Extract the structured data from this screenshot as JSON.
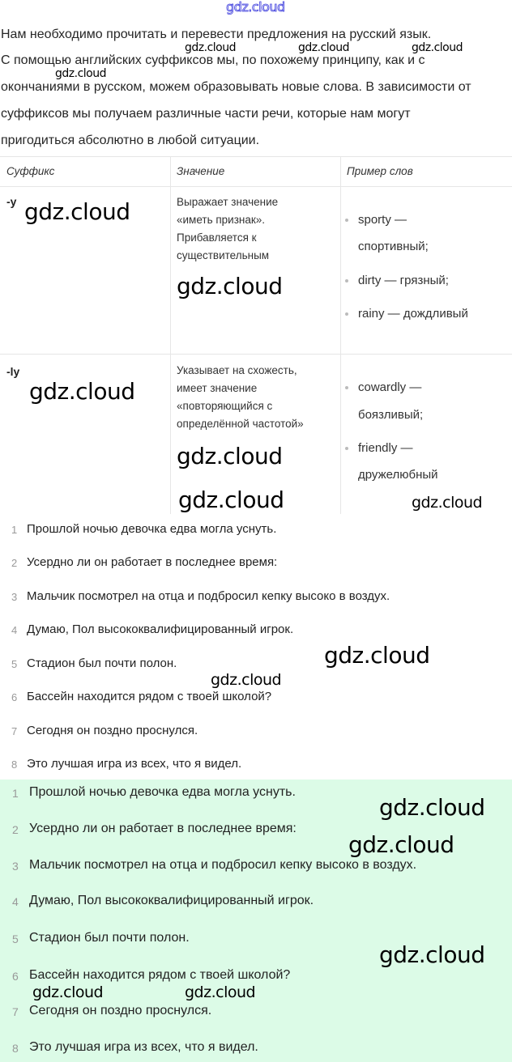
{
  "intro": [
    "Нам необходимо прочитать и перевести предложения на русский язык.",
    "С помощью английских суффиксов мы, по похожему принципу, как и с",
    "окончаниями в русском, можем образовывать новые слова. В зависимости от",
    "суффиксов мы получаем различные части речи, которые нам могут",
    "пригодиться абсолютно в любой ситуации."
  ],
  "table": {
    "headers": [
      "Суффикс",
      "Значение",
      "Пример слов"
    ],
    "rows": [
      {
        "suffix": "-y",
        "meaning": [
          "Выражает значение",
          "«иметь признак».",
          "Прибавляется к",
          "существительным"
        ],
        "examples": [
          [
            "sporty —",
            "спортивный;"
          ],
          [
            "dirty — грязный;"
          ],
          [
            "rainy — дождливый"
          ]
        ]
      },
      {
        "suffix": "-ly",
        "meaning": [
          "Указывает на схожесть,",
          "имеет значение",
          "«повторяющийся с",
          "определённой частотой»"
        ],
        "examples": [
          [
            "cowardly —",
            "боязливый;"
          ],
          [
            "friendly —",
            "дружелюбный"
          ]
        ]
      }
    ]
  },
  "list": [
    {
      "n": "1",
      "text": "Прошлой ночью девочка едва могла уснуть."
    },
    {
      "n": "2",
      "text": "Усердно ли он работает в последнее время:"
    },
    {
      "n": "3",
      "text": "Мальчик посмотрел на отца и подбросил кепку высоко в воздух."
    },
    {
      "n": "4",
      "text": "Думаю, Пол высококвалифицированный игрок."
    },
    {
      "n": "5",
      "text": "Стадион был почти полон."
    },
    {
      "n": "6",
      "text": "Бассейн находится рядом с твоей школой?"
    },
    {
      "n": "7",
      "text": "Сегодня он поздно проснулся."
    },
    {
      "n": "8",
      "text": "Это лучшая игра из всех, что я видел."
    }
  ],
  "answer_list": [
    {
      "n": "1",
      "text": "Прошлой ночью девочка едва могла уснуть."
    },
    {
      "n": "2",
      "text": "Усердно ли он работает в последнее время:"
    },
    {
      "n": "3",
      "text": "Мальчик посмотрел на отца и подбросил кепку высоко в воздух."
    },
    {
      "n": "4",
      "text": "Думаю, Пол высококвалифицированный игрок."
    },
    {
      "n": "5",
      "text": "Стадион был почти полон."
    },
    {
      "n": "6",
      "text": "Бассейн находится рядом с твоей школой?"
    },
    {
      "n": "7",
      "text": "Сегодня он поздно проснулся."
    },
    {
      "n": "8",
      "text": "Это лучшая игра из всех, что я видел."
    }
  ],
  "watermark": "gdz.cloud",
  "colors": {
    "answer_bg": "#dcfbe7",
    "top_watermark": "#3a3adc"
  }
}
